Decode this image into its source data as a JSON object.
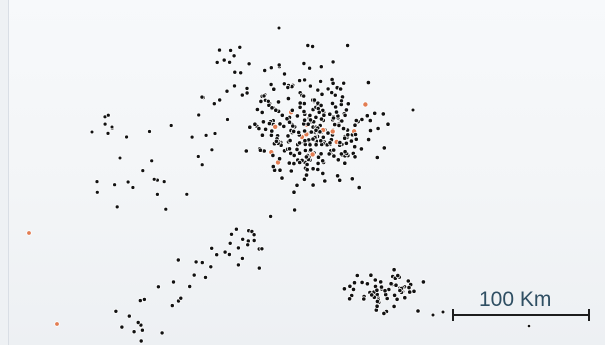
{
  "map": {
    "scale_bar": {
      "label": "100 Km"
    },
    "colors": {
      "background": "#f3f5f7",
      "point_dark": "#111111",
      "point_highlight": "#e27d52",
      "point_outline": "#ffffff",
      "scale_bar": "#1d1d1d",
      "label": "#2f4f63"
    }
  },
  "chart_data": {
    "type": "scatter",
    "title": "",
    "xlabel": "",
    "ylabel": "",
    "series": [
      {
        "name": "",
        "clusters": [
          {
            "region": "central-dense",
            "approx_count": 280
          },
          {
            "region": "upper-band",
            "approx_count": 50
          },
          {
            "region": "left-band",
            "approx_count": 30
          },
          {
            "region": "southwest-band",
            "approx_count": 45
          },
          {
            "region": "southeast-cluster",
            "approx_count": 65
          },
          {
            "region": "far-west-single",
            "approx_count": 1
          }
        ]
      }
    ]
  }
}
